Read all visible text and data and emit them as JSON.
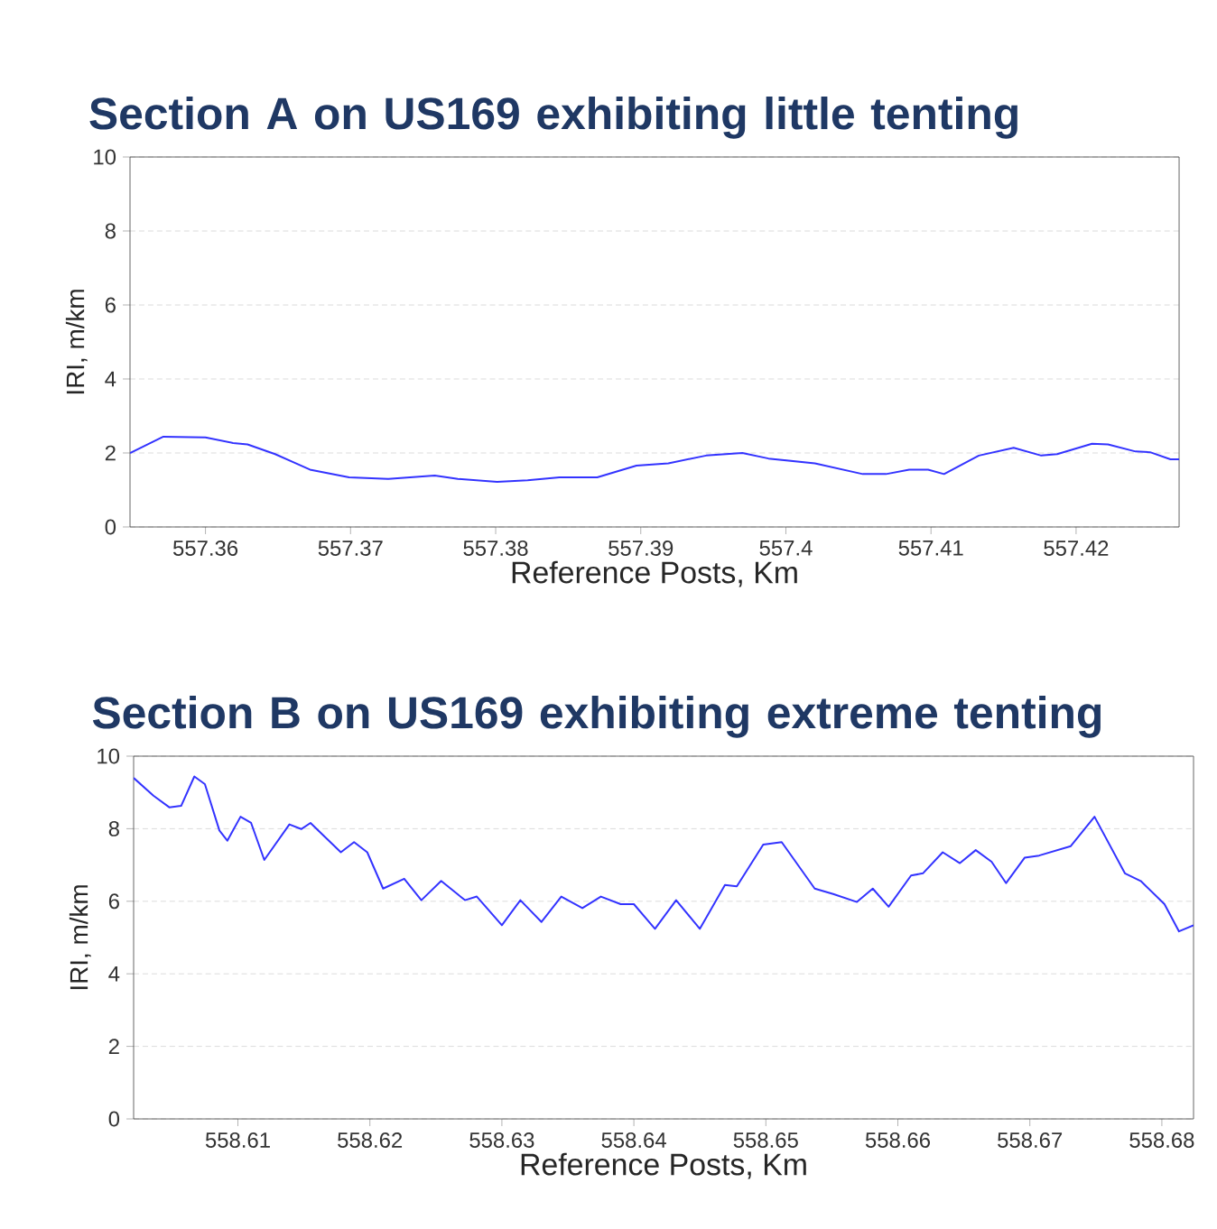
{
  "chart_data": [
    {
      "type": "line",
      "title": "Section  A on  US169 exhibiting little tenting",
      "xlabel": "Reference Posts, Km",
      "ylabel": "IRI, m/km",
      "x": [
        557.3548,
        557.3571,
        557.36,
        557.3619,
        557.3629,
        557.3648,
        557.3672,
        557.3699,
        557.3726,
        557.3758,
        557.3774,
        557.3801,
        557.3822,
        557.3844,
        557.387,
        557.3897,
        557.3919,
        557.3945,
        557.397,
        557.3988,
        557.402,
        557.4053,
        557.4069,
        557.4085,
        557.4098,
        557.4109,
        557.4133,
        557.4157,
        557.4176,
        557.4187,
        557.4211,
        557.4222,
        557.4241,
        557.4251,
        557.4265,
        557.4271
      ],
      "series": [
        {
          "color": "#3333ff",
          "values": [
            2.0,
            2.44,
            2.42,
            2.27,
            2.23,
            1.97,
            1.55,
            1.34,
            1.3,
            1.39,
            1.3,
            1.22,
            1.26,
            1.34,
            1.34,
            1.66,
            1.72,
            1.93,
            2.0,
            1.85,
            1.72,
            1.43,
            1.43,
            1.55,
            1.55,
            1.43,
            1.93,
            2.14,
            1.93,
            1.97,
            2.25,
            2.23,
            2.04,
            2.02,
            1.83,
            1.83
          ]
        }
      ],
      "xlim": [
        557.3548,
        557.4271
      ],
      "ylim": [
        0,
        10
      ],
      "xticks": [
        557.36,
        557.37,
        557.38,
        557.39,
        557.4,
        557.41,
        557.42
      ],
      "yticks": [
        0,
        2,
        4,
        6,
        8,
        10
      ],
      "grid": "y"
    },
    {
      "type": "line",
      "title": "Section B on US169 exhibiting extreme tenting",
      "xlabel": "Reference Posts, Km",
      "ylabel": "IRI, m/km",
      "x": [
        558.6021,
        558.6036,
        558.6048,
        558.6057,
        558.6067,
        558.6075,
        558.6086,
        558.6092,
        558.6102,
        558.611,
        558.612,
        558.6139,
        558.6148,
        558.6155,
        558.6178,
        558.6188,
        558.6198,
        558.621,
        558.6226,
        558.6239,
        558.6254,
        558.6272,
        558.6281,
        558.63,
        558.6314,
        558.633,
        558.6345,
        558.6361,
        558.6375,
        558.639,
        558.64,
        558.6416,
        558.6432,
        558.645,
        558.6469,
        558.6478,
        558.6498,
        558.6512,
        558.6537,
        558.6551,
        558.6569,
        558.6581,
        558.6593,
        558.661,
        558.6619,
        558.6634,
        558.6647,
        558.6659,
        558.6671,
        558.6682,
        558.6696,
        558.6707,
        558.6731,
        558.6749,
        558.6772,
        558.6784,
        558.6802,
        558.6813,
        558.6824
      ],
      "series": [
        {
          "color": "#3333ff",
          "values": [
            9.4,
            8.91,
            8.59,
            8.63,
            9.44,
            9.23,
            7.95,
            7.67,
            8.33,
            8.16,
            7.14,
            8.12,
            7.99,
            8.16,
            7.35,
            7.63,
            7.35,
            6.35,
            6.62,
            6.03,
            6.56,
            6.03,
            6.13,
            5.34,
            6.03,
            5.43,
            6.13,
            5.81,
            6.13,
            5.92,
            5.92,
            5.24,
            6.03,
            5.24,
            6.45,
            6.41,
            7.56,
            7.63,
            6.35,
            6.2,
            5.98,
            6.35,
            5.85,
            6.71,
            6.77,
            7.35,
            7.05,
            7.41,
            7.09,
            6.5,
            7.2,
            7.26,
            7.52,
            8.33,
            6.77,
            6.56,
            5.92,
            5.17,
            5.34
          ]
        }
      ],
      "xlim": [
        558.6021,
        558.6824
      ],
      "ylim": [
        0,
        10
      ],
      "xticks": [
        558.61,
        558.62,
        558.63,
        558.64,
        558.65,
        558.66,
        558.67,
        558.68
      ],
      "yticks": [
        0,
        2,
        4,
        6,
        8,
        10
      ],
      "grid": "y"
    }
  ]
}
